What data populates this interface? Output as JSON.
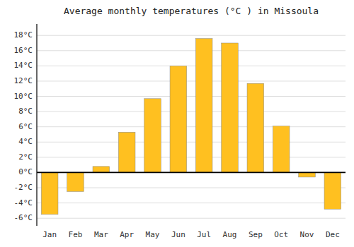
{
  "chart_data": {
    "type": "bar",
    "title": "Average monthly temperatures (°C ) in Missoula",
    "categories": [
      "Jan",
      "Feb",
      "Mar",
      "Apr",
      "May",
      "Jun",
      "Jul",
      "Aug",
      "Sep",
      "Oct",
      "Nov",
      "Dec"
    ],
    "values": [
      -5.5,
      -2.5,
      0.8,
      5.3,
      9.7,
      14.0,
      17.6,
      17.0,
      11.7,
      6.1,
      -0.6,
      -4.8
    ],
    "color": "#FFC020",
    "ylim": [
      -7,
      19.5
    ],
    "yticks": [
      {
        "value": -6,
        "label": "-6°C"
      },
      {
        "value": -4,
        "label": "-4°C"
      },
      {
        "value": -2,
        "label": "-2°C"
      },
      {
        "value": 0,
        "label": "0°C"
      },
      {
        "value": 2,
        "label": "2°C"
      },
      {
        "value": 4,
        "label": "4°C"
      },
      {
        "value": 6,
        "label": "6°C"
      },
      {
        "value": 8,
        "label": "8°C"
      },
      {
        "value": 10,
        "label": "10°C"
      },
      {
        "value": 12,
        "label": "12°C"
      },
      {
        "value": 14,
        "label": "14°C"
      },
      {
        "value": 16,
        "label": "16°C"
      },
      {
        "value": 18,
        "label": "18°C"
      }
    ],
    "grid": true
  }
}
